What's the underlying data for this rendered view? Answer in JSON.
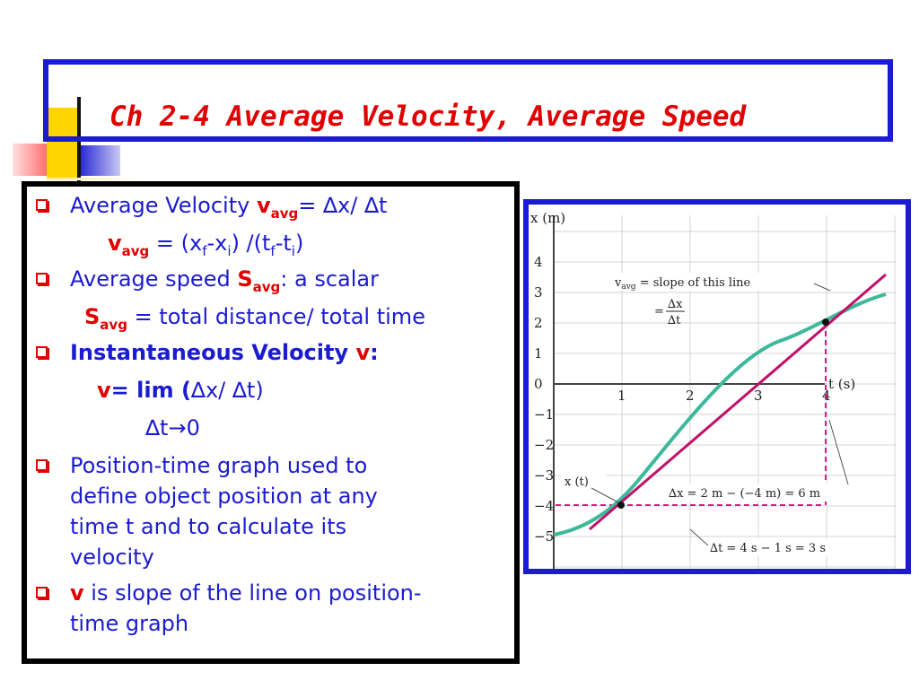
{
  "slide": {
    "title": "Ch 2-4 Average Velocity, Average Speed",
    "colors": {
      "title": "#e10000",
      "frame": "#1b1bd0",
      "text": "#1b1bd0",
      "accent": "#e10000"
    }
  },
  "bullets": {
    "b1_text": "Average Velocity ",
    "b1_v": "v",
    "b1_sub": "avg",
    "b1_eq": "= ∆x/ ∆t",
    "b1b_v": "v",
    "b1b_sub": "avg",
    "b1b_a": " = (x",
    "b1b_f1": "f",
    "b1b_b": "-x",
    "b1b_i1": "i",
    "b1b_c": ") /(t",
    "b1b_f2": "f",
    "b1b_d": "-t",
    "b1b_i2": "i",
    "b1b_e": ")",
    "b2_text": "Average speed ",
    "b2_s": "S",
    "b2_sub": "avg",
    "b2_rest": ": a scalar",
    "b2b_s": "S",
    "b2b_sub": "avg",
    "b2b_rest": " = total distance/ total time",
    "b3_text": "Instantaneous Velocity ",
    "b3_v": "v",
    "b3_colon": ":",
    "b3b_v": "v",
    "b3b_rest": "= lim (",
    "b3b_end": "∆x/ ∆t)",
    "b3c": "∆t→0",
    "b4_l1": "Position-time graph used to",
    "b4_l2": "define object position at any",
    "b4_l3": "time t and to calculate its",
    "b4_l4": "velocity",
    "b5_v": "v",
    "b5_rest": "  is slope of the line on position-",
    "b5_l2": "time graph"
  },
  "graph": {
    "y_axis_label": "x (m)",
    "x_axis_label": "t (s)",
    "y_ticks": [
      "4",
      "3",
      "2",
      "1",
      "0",
      "−1",
      "−2",
      "−3",
      "−4",
      "−5"
    ],
    "x_ticks": [
      "1",
      "2",
      "3",
      "4"
    ],
    "ann_vavg_a": "v",
    "ann_vavg_sub": "avg",
    "ann_vavg_b": " = slope of this line",
    "ann_frac_eq": "=",
    "ann_frac_num": "∆x",
    "ann_frac_den": "∆t",
    "ann_xt": "x (t)",
    "ann_dx": "∆x = 2 m − (−4 m) = 6 m",
    "ann_dt": "∆t = 4 s − 1 s = 3 s",
    "line_color": "#c0106a",
    "curve_color": "#3cb89a",
    "dash_color": "#d81b8a"
  }
}
